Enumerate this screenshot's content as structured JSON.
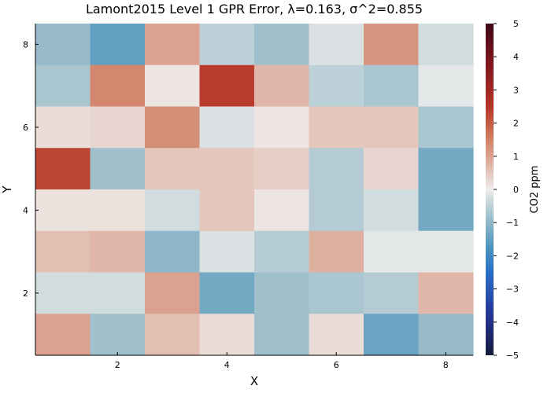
{
  "chart_data": {
    "type": "heatmap",
    "title": "Lamont2015 Level 1 GPR Error, λ=0.163, σ^2=0.855",
    "xlabel": "X",
    "ylabel": "Y",
    "colorbar_label": "CO2 ppm",
    "x_ticks": [
      "2",
      "4",
      "6",
      "8"
    ],
    "y_ticks": [
      "2",
      "4",
      "6",
      "8"
    ],
    "xlim": [
      0.5,
      8.5
    ],
    "ylim": [
      0.5,
      8.5
    ],
    "colorbar_range": [
      -5,
      5
    ],
    "colorbar_ticks": [
      "−5",
      "−4",
      "−3",
      "−2",
      "−1",
      "0",
      "1",
      "2",
      "3",
      "4",
      "5"
    ],
    "colormap": "balance",
    "rows_y": [
      8,
      7,
      6,
      5,
      4,
      3,
      2,
      1
    ],
    "values": [
      [
        -0.9,
        -1.5,
        1.0,
        -0.5,
        -0.8,
        -0.2,
        1.2,
        -0.3
      ],
      [
        -0.7,
        1.4,
        0.1,
        2.4,
        0.7,
        -0.5,
        -0.7,
        -0.1
      ],
      [
        0.2,
        0.3,
        1.3,
        -0.2,
        0.1,
        0.5,
        0.5,
        -0.7
      ],
      [
        2.3,
        -0.8,
        0.5,
        0.5,
        0.4,
        -0.6,
        0.3,
        -1.3
      ],
      [
        0.15,
        0.15,
        -0.3,
        0.5,
        0.1,
        -0.6,
        -0.3,
        -1.3
      ],
      [
        0.6,
        0.7,
        -1.0,
        -0.2,
        -0.6,
        0.8,
        -0.1,
        -0.1
      ],
      [
        -0.3,
        -0.3,
        1.0,
        -1.3,
        -0.8,
        -0.7,
        -0.6,
        0.7
      ],
      [
        1.0,
        -0.8,
        0.6,
        0.2,
        -0.8,
        0.2,
        -1.4,
        -0.9
      ]
    ]
  }
}
